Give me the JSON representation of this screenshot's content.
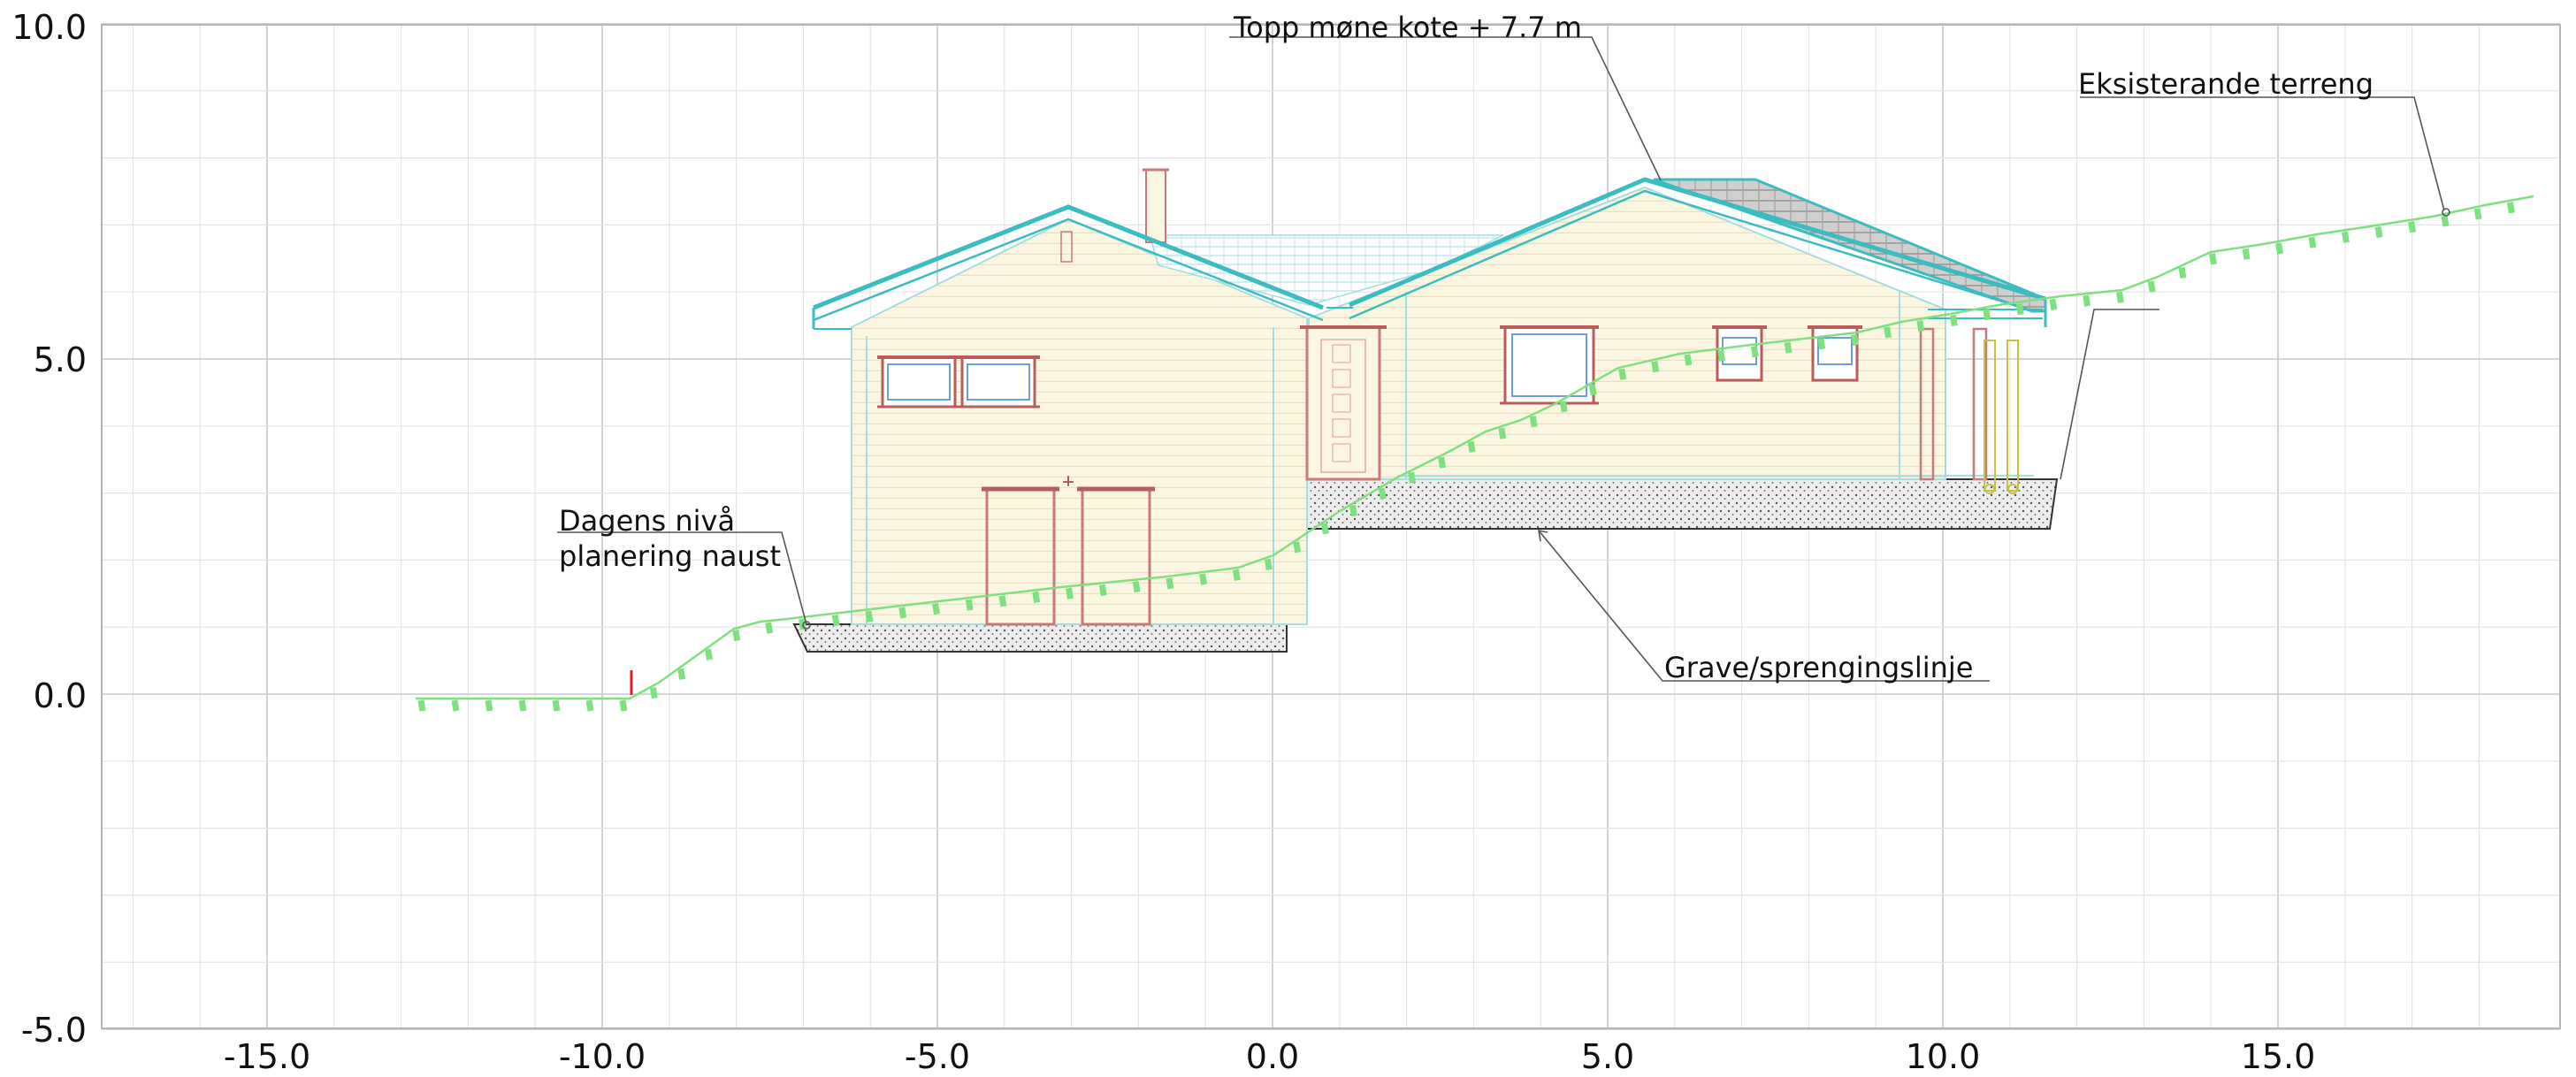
{
  "x_ticks": [
    "-15.0",
    "-10.0",
    "-5.0",
    "0.0",
    "5.0",
    "10.0",
    "15.0"
  ],
  "y_ticks": [
    "10.0",
    "5.0",
    "0.0",
    "-5.0"
  ],
  "annotations": {
    "ridge": "Topp møne kote + 7.7 m",
    "terrain": "Eksisterande terreng",
    "level_line1": "Dagens nivå",
    "level_line2": "planering naust",
    "excavation": "Grave/sprengingslinje"
  },
  "colors": {
    "grid_major": "#c8c8c8",
    "grid_minor": "#e4e4e4",
    "terrain": "#7ee07e",
    "roof_outline": "#3bbcc0",
    "wall_fill": "#fbf6e2",
    "wall_lines": "#ece3b4",
    "window_frame": "#b85c5c",
    "window_glass": "#6a9fe0",
    "excavation_fill": "#e9e9e9",
    "marker": "#d8202a"
  }
}
